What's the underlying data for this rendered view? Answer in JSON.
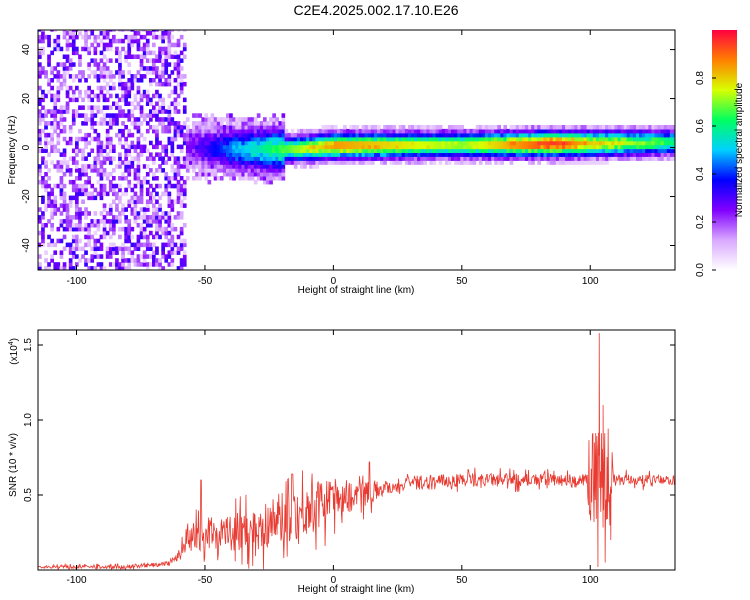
{
  "figure_title": "C2E4.2025.002.17.10.E26",
  "chart_data": [
    {
      "type": "heatmap",
      "xlabel": "Height of straight line (km)",
      "ylabel": "Frequency (Hz)",
      "xlim": [
        -115,
        133
      ],
      "ylim": [
        -50,
        48
      ],
      "xticks": [
        -100,
        -50,
        0,
        50,
        100
      ],
      "xtick_labels": [
        "-100",
        "-50",
        "0",
        "50",
        "100"
      ],
      "yticks": [
        -40,
        -20,
        0,
        20,
        40
      ],
      "ytick_labels": [
        "-40",
        "-20",
        "0",
        "20",
        "40"
      ],
      "colorbar": {
        "label": "Normalized spectral amplitude",
        "range": [
          0,
          1
        ],
        "ticks": [
          0.0,
          0.2,
          0.4,
          0.6,
          0.8
        ],
        "tick_labels": [
          "0.0",
          "0.2",
          "0.4",
          "0.6",
          "0.8"
        ],
        "colormap": [
          "#ffffff",
          "#d9a8ff",
          "#8000ff",
          "#0000ff",
          "#00d0ff",
          "#00ff60",
          "#d8ff00",
          "#ff8000",
          "#ff0040"
        ]
      },
      "ridge_center_hz": [
        {
          "x": -60,
          "y": 0
        },
        {
          "x": -40,
          "y": -1.5
        },
        {
          "x": -20,
          "y": -1.5
        },
        {
          "x": 0,
          "y": 0
        },
        {
          "x": 50,
          "y": 0.5
        },
        {
          "x": 100,
          "y": 1
        },
        {
          "x": 133,
          "y": 1.5
        }
      ],
      "ridge_peak_amplitude": [
        {
          "x": -115,
          "y": 0.1
        },
        {
          "x": -60,
          "y": 0.2
        },
        {
          "x": -40,
          "y": 0.45
        },
        {
          "x": -15,
          "y": 0.7
        },
        {
          "x": 0,
          "y": 0.85
        },
        {
          "x": 50,
          "y": 0.7
        },
        {
          "x": 85,
          "y": 0.95
        },
        {
          "x": 100,
          "y": 0.8
        },
        {
          "x": 133,
          "y": 0.6
        }
      ]
    },
    {
      "type": "line",
      "xlabel": "Height of straight line (km)",
      "ylabel": "SNR (10 * v/v)",
      "yscale_label": "(x10",
      "yscale_exponent": "4",
      "y_units_multiplier": 10000,
      "xlim": [
        -115,
        133
      ],
      "ylim": [
        0,
        1.6
      ],
      "xticks": [
        -100,
        -50,
        0,
        50,
        100
      ],
      "xtick_labels": [
        "-100",
        "-50",
        "0",
        "50",
        "100"
      ],
      "yticks": [
        0.5,
        1.0,
        1.5
      ],
      "ytick_labels": [
        "0.5",
        "1.0",
        "1.5"
      ],
      "color": "#e83a30",
      "series": [
        {
          "values_baseline": [
            {
              "x": -115,
              "y": 0.02
            },
            {
              "x": -80,
              "y": 0.02
            },
            {
              "x": -65,
              "y": 0.04
            },
            {
              "x": -60,
              "y": 0.1
            },
            {
              "x": -55,
              "y": 0.2
            },
            {
              "x": -50,
              "y": 0.25
            },
            {
              "x": -40,
              "y": 0.25
            },
            {
              "x": -30,
              "y": 0.27
            },
            {
              "x": -20,
              "y": 0.35
            },
            {
              "x": -10,
              "y": 0.4
            },
            {
              "x": 0,
              "y": 0.48
            },
            {
              "x": 10,
              "y": 0.5
            },
            {
              "x": 20,
              "y": 0.55
            },
            {
              "x": 30,
              "y": 0.58
            },
            {
              "x": 50,
              "y": 0.6
            },
            {
              "x": 80,
              "y": 0.6
            },
            {
              "x": 100,
              "y": 0.6
            },
            {
              "x": 110,
              "y": 0.6
            },
            {
              "x": 133,
              "y": 0.6
            }
          ],
          "noise_amplitude": [
            {
              "x": -115,
              "y": 0.01
            },
            {
              "x": -62,
              "y": 0.02
            },
            {
              "x": -55,
              "y": 0.12
            },
            {
              "x": -40,
              "y": 0.15
            },
            {
              "x": -20,
              "y": 0.22
            },
            {
              "x": -5,
              "y": 0.2
            },
            {
              "x": 10,
              "y": 0.12
            },
            {
              "x": 20,
              "y": 0.06
            },
            {
              "x": 90,
              "y": 0.05
            },
            {
              "x": 133,
              "y": 0.04
            }
          ],
          "peaks": [
            {
              "x": -51.5,
              "y": 0.6
            },
            {
              "x": -16,
              "y": 0.64
            },
            {
              "x": 14,
              "y": 0.72
            },
            {
              "x": 103.5,
              "y": 1.58
            },
            {
              "x": 103,
              "y": 0.02
            },
            {
              "x": 105,
              "y": 1.1
            },
            {
              "x": 105.8,
              "y": 0.05
            },
            {
              "x": 107,
              "y": 0.85
            },
            {
              "x": 108,
              "y": 0.2
            }
          ]
        }
      ]
    }
  ]
}
